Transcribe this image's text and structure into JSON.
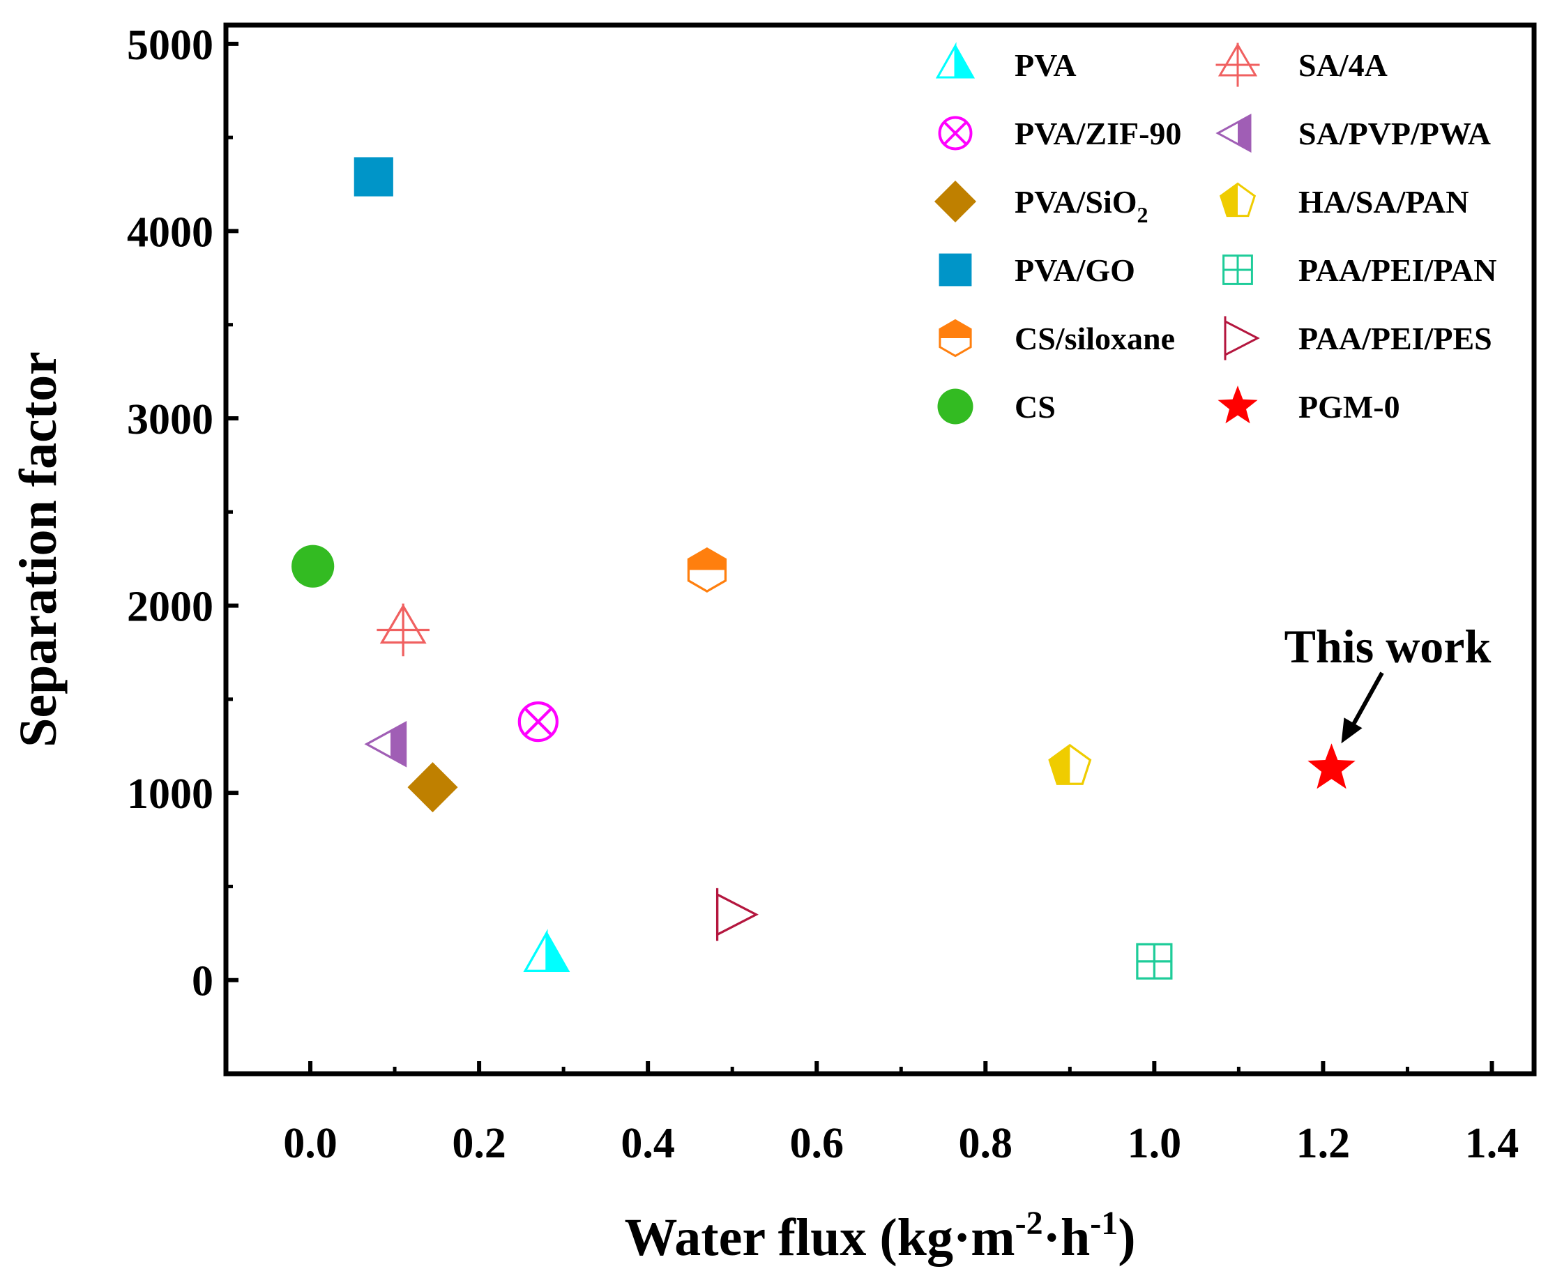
{
  "chart_data": {
    "type": "scatter",
    "xlabel": {
      "main": "Water flux (kg·m",
      "sup1": "-2",
      "mid": "·h",
      "sup2": "-1",
      "end": ")"
    },
    "ylabel": "Separation factor",
    "xlim": [
      -0.1,
      1.45
    ],
    "ylim": [
      -500,
      5100
    ],
    "xticks": [
      0.0,
      0.2,
      0.4,
      0.6,
      0.8,
      1.0,
      1.2,
      1.4
    ],
    "xtick_labels": [
      "0.0",
      "0.2",
      "0.4",
      "0.6",
      "0.8",
      "1.0",
      "1.2",
      "1.4"
    ],
    "yticks": [
      0,
      1000,
      2000,
      3000,
      4000,
      5000
    ],
    "ytick_labels": [
      "0",
      "1000",
      "2000",
      "3000",
      "4000",
      "5000"
    ],
    "series": [
      {
        "name": "PVA",
        "marker": "triangle-up-half",
        "color": "#00FFFF",
        "x": 0.28,
        "y": 130
      },
      {
        "name": "PVA/ZIF-90",
        "marker": "circle-x",
        "color": "#FF00FF",
        "x": 0.27,
        "y": 1380
      },
      {
        "name": "PVA/SiO",
        "sub": "2",
        "marker": "diamond",
        "color": "#BF8000",
        "x": 0.145,
        "y": 1030
      },
      {
        "name": "PVA/GO",
        "marker": "square",
        "color": "#0095C8",
        "x": 0.075,
        "y": 4290
      },
      {
        "name": "CS/siloxane",
        "marker": "hexagon-half",
        "color": "#FF7F0E",
        "x": 0.47,
        "y": 2190
      },
      {
        "name": "CS",
        "marker": "circle",
        "color": "#33BB22",
        "x": 0.003,
        "y": 2210
      },
      {
        "name": "SA/4A",
        "marker": "triangle-cross",
        "color": "#F06060",
        "x": 0.11,
        "y": 1870
      },
      {
        "name": "SA/PVP/PWA",
        "marker": "triangle-left-half",
        "color": "#A05EB5",
        "x": 0.095,
        "y": 1260
      },
      {
        "name": "HA/SA/PAN",
        "marker": "pentagon-half",
        "color": "#EFCC00",
        "x": 0.9,
        "y": 1140
      },
      {
        "name": "PAA/PEI/PAN",
        "marker": "square-grid",
        "color": "#1ECC99",
        "x": 1.0,
        "y": 100
      },
      {
        "name": "PAA/PEI/PES",
        "marker": "triangle-right-cross",
        "color": "#B4163E",
        "x": 0.5,
        "y": 350
      },
      {
        "name": "PGM-0",
        "marker": "star",
        "color": "#FF0000",
        "x": 1.21,
        "y": 1130
      }
    ],
    "annotation": {
      "text": "This work",
      "target_series": "PGM-0"
    }
  }
}
